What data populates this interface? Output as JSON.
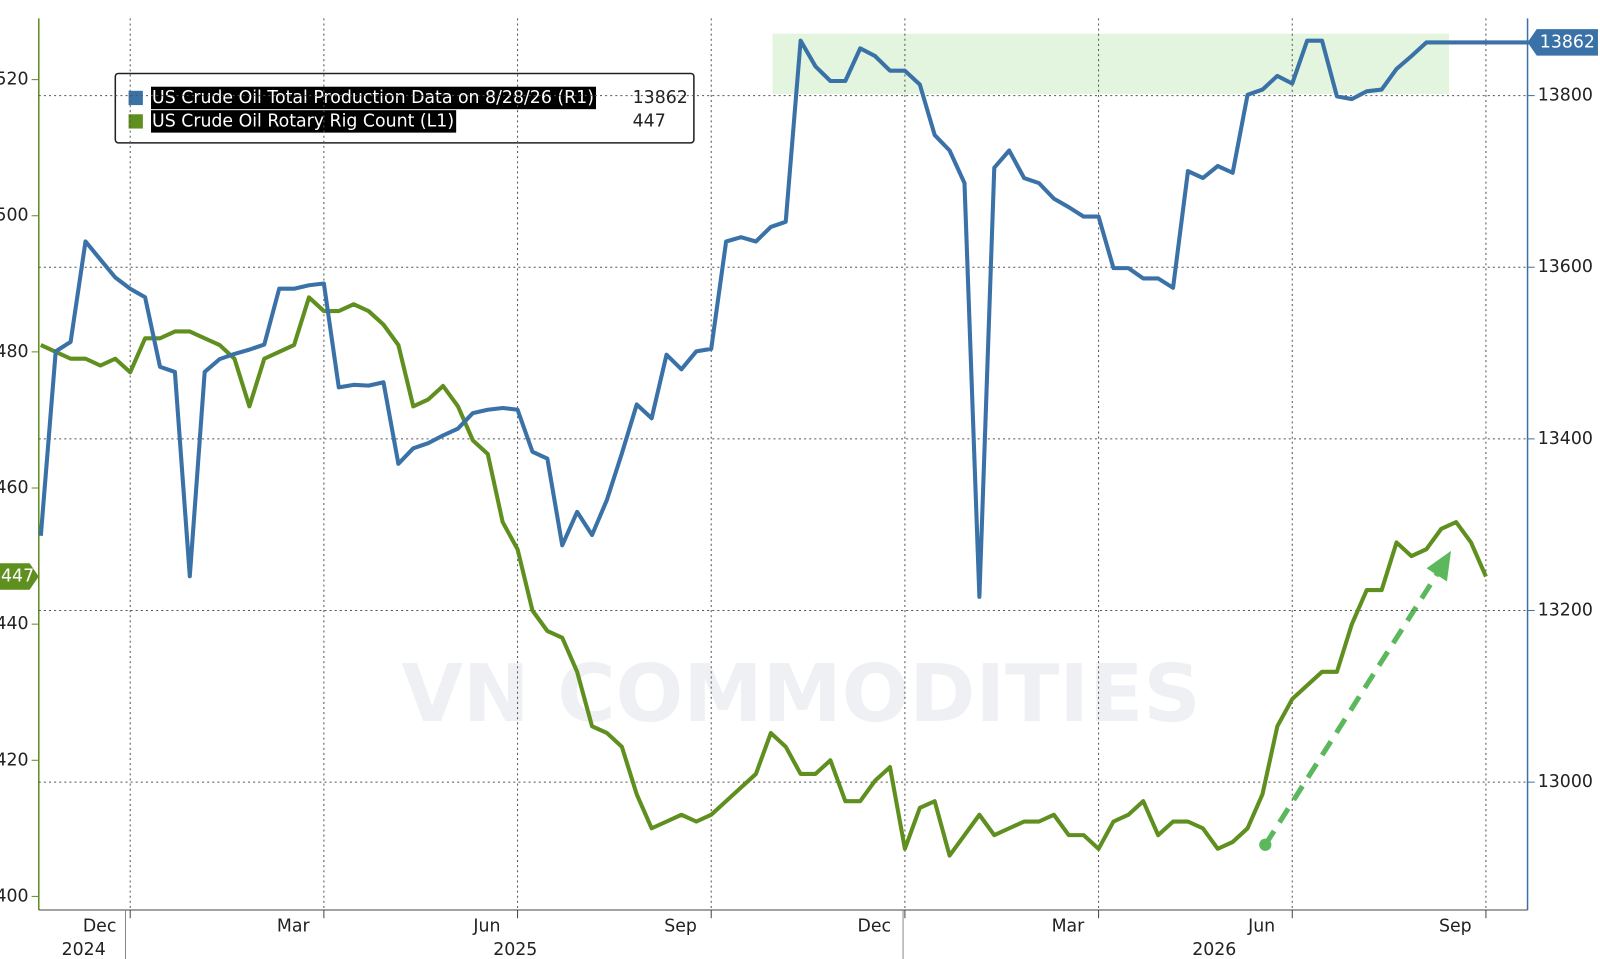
{
  "chart_data": {
    "type": "line",
    "watermark": "VN COMMODITIES",
    "categories": [
      null,
      null,
      null,
      null,
      null,
      null,
      "Dec",
      null,
      null,
      null,
      null,
      null,
      null,
      null,
      null,
      null,
      null,
      null,
      null,
      "Mar",
      null,
      null,
      null,
      null,
      null,
      null,
      null,
      null,
      null,
      null,
      null,
      null,
      "Jun",
      null,
      null,
      null,
      null,
      null,
      null,
      null,
      null,
      null,
      null,
      null,
      null,
      "Sep",
      null,
      null,
      null,
      null,
      null,
      null,
      null,
      null,
      null,
      null,
      null,
      null,
      "Dec",
      null,
      null,
      null,
      null,
      null,
      null,
      null,
      null,
      null,
      null,
      null,
      null,
      "Mar",
      null,
      null,
      null,
      null,
      null,
      null,
      null,
      null,
      null,
      null,
      null,
      null,
      "Jun",
      null,
      null,
      null,
      null,
      null,
      null,
      null,
      null,
      null,
      null,
      null,
      null,
      "Sep",
      null,
      null,
      null
    ],
    "x_year_labels": [
      "2024",
      "2025",
      "2026"
    ],
    "series": [
      {
        "name": "US Crude Oil Total Production Data on 8/28/26 (R1)",
        "color": "#3a72a8",
        "axis": "y2",
        "values": [
          13287,
          13502,
          13513,
          13630,
          13609,
          13588,
          13575,
          13565,
          13484,
          13478,
          13240,
          13478,
          13493,
          13499,
          13504,
          13510,
          13575,
          13575,
          13579,
          13581,
          13460,
          13463,
          13462,
          13466,
          13371,
          13389,
          13395,
          13404,
          13412,
          13430,
          13434,
          13436,
          13434,
          13385,
          13377,
          13276,
          13315,
          13288,
          13329,
          13383,
          13440,
          13424,
          13498,
          13481,
          13502,
          13505,
          13630,
          13635,
          13630,
          13647,
          13653,
          13864,
          13834,
          13817,
          13817,
          13855,
          13846,
          13829,
          13829,
          13813,
          13754,
          13736,
          13698,
          13216,
          13716,
          13736,
          13704,
          13698,
          13680,
          13670,
          13659,
          13659,
          13599,
          13599,
          13587,
          13587,
          13576,
          13712,
          13704,
          13718,
          13710,
          13801,
          13807,
          13823,
          13814,
          13864,
          13864,
          13799,
          13796,
          13805,
          13807,
          13831,
          13846,
          13862,
          13862,
          13862,
          13862,
          13862,
          13862,
          13862,
          13862
        ]
      },
      {
        "name": "US Crude Oil Rotary Rig Count (L1)",
        "color": "#5f8f1f",
        "axis": "y",
        "values": [
          481,
          480,
          479,
          479,
          478,
          479,
          477,
          482,
          482,
          483,
          483,
          482,
          481,
          479,
          472,
          479,
          480,
          481,
          488,
          486,
          486,
          487,
          486,
          484,
          481,
          472,
          473,
          475,
          472,
          467,
          465,
          455,
          451,
          442,
          439,
          438,
          433,
          425,
          424,
          422,
          415,
          410,
          411,
          412,
          411,
          412,
          414,
          416,
          418,
          424,
          422,
          418,
          418,
          420,
          414,
          414,
          417,
          419,
          407,
          413,
          414,
          406,
          409,
          412,
          409,
          410,
          411,
          411,
          412,
          409,
          409,
          407,
          411,
          412,
          414,
          409,
          411,
          411,
          410,
          407,
          408,
          410,
          415,
          425,
          429,
          431,
          433,
          433,
          440,
          445,
          445,
          452,
          450,
          451,
          454,
          455,
          452,
          447,
          null,
          null,
          null
        ]
      }
    ],
    "ylim": [
      398,
      529
    ],
    "yticks": [
      400,
      420,
      440,
      460,
      480,
      500,
      520
    ],
    "y2lim": [
      12851,
      13890
    ],
    "y2ticks": [
      13000,
      13200,
      13400,
      13600,
      13800
    ],
    "grid": true
  }
}
